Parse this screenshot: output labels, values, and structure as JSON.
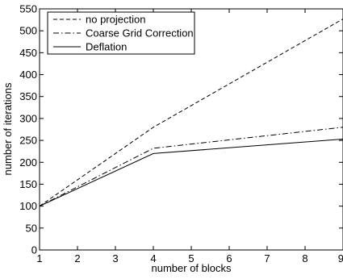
{
  "chart_data": {
    "type": "line",
    "title": "",
    "xlabel": "number of blocks",
    "ylabel": "number of iterations",
    "xlim": [
      1,
      9
    ],
    "ylim": [
      0,
      550
    ],
    "xticks": [
      1,
      2,
      3,
      4,
      5,
      6,
      7,
      8,
      9
    ],
    "yticks": [
      0,
      50,
      100,
      150,
      200,
      250,
      300,
      350,
      400,
      450,
      500,
      550
    ],
    "grid": false,
    "legend_position": "top-left",
    "series": [
      {
        "name": "no projection",
        "style": "dashed",
        "color": "#000000",
        "x": [
          1,
          4,
          9
        ],
        "y": [
          100,
          280,
          527
        ]
      },
      {
        "name": "Coarse Grid Correction",
        "style": "dashdot",
        "color": "#000000",
        "x": [
          1,
          4,
          9
        ],
        "y": [
          100,
          232,
          280
        ]
      },
      {
        "name": "Deflation",
        "style": "solid",
        "color": "#000000",
        "x": [
          1,
          4,
          9
        ],
        "y": [
          100,
          220,
          253
        ]
      }
    ]
  }
}
